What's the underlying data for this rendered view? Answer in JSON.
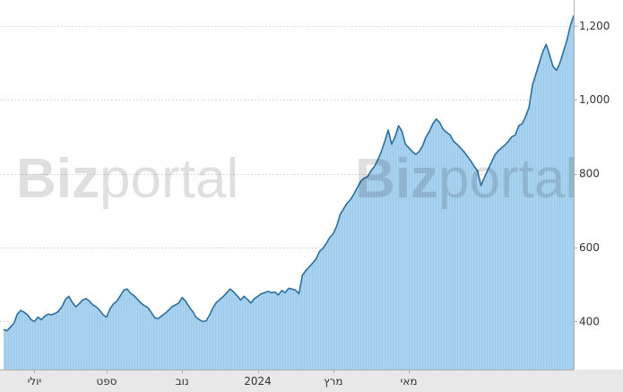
{
  "watermark": {
    "bold": "Biz",
    "light": "portal"
  },
  "chart_data": {
    "type": "area",
    "title": "",
    "xlabel": "",
    "ylabel": "",
    "ylim": [
      270,
      1270
    ],
    "yticks": [
      400,
      600,
      800,
      1000,
      1200
    ],
    "ytick_labels": [
      "400",
      "600",
      "800",
      "1,000",
      "1,200"
    ],
    "y_axis_position": "right",
    "grid": true,
    "legend": "none",
    "colors": {
      "line": "#2c6e9e",
      "fill": "#a9d2ee",
      "fill_stripe": "#8fc2e6",
      "axis_band": "#e8e8e8"
    },
    "x_tick_labels": [
      {
        "label": "יולי",
        "index": 9
      },
      {
        "label": "ספט",
        "index": 30
      },
      {
        "label": "נוב",
        "index": 52
      },
      {
        "label": "2024",
        "index": 74
      },
      {
        "label": "מרץ",
        "index": 96
      },
      {
        "label": "מאי",
        "index": 118
      }
    ],
    "series": [
      {
        "values": [
          378,
          375,
          385,
          395,
          420,
          430,
          425,
          418,
          405,
          400,
          412,
          405,
          415,
          420,
          418,
          422,
          428,
          440,
          460,
          468,
          452,
          440,
          448,
          458,
          462,
          455,
          445,
          440,
          430,
          418,
          412,
          435,
          448,
          455,
          470,
          485,
          488,
          476,
          470,
          460,
          450,
          443,
          438,
          425,
          410,
          408,
          415,
          422,
          430,
          440,
          445,
          450,
          465,
          455,
          440,
          428,
          412,
          405,
          400,
          402,
          418,
          438,
          452,
          460,
          468,
          478,
          488,
          480,
          470,
          458,
          468,
          460,
          450,
          462,
          468,
          475,
          478,
          482,
          478,
          480,
          472,
          484,
          478,
          490,
          488,
          485,
          475,
          525,
          538,
          548,
          558,
          570,
          590,
          598,
          612,
          628,
          638,
          658,
          690,
          705,
          720,
          730,
          745,
          762,
          780,
          788,
          792,
          808,
          820,
          838,
          860,
          888,
          918,
          880,
          900,
          930,
          915,
          880,
          870,
          860,
          852,
          860,
          875,
          900,
          915,
          935,
          948,
          938,
          920,
          912,
          905,
          888,
          880,
          870,
          860,
          848,
          835,
          820,
          808,
          768,
          790,
          810,
          830,
          850,
          862,
          870,
          878,
          888,
          900,
          905,
          930,
          935,
          955,
          980,
          1040,
          1070,
          1100,
          1130,
          1150,
          1120,
          1090,
          1080,
          1100,
          1130,
          1160,
          1200,
          1228
        ]
      }
    ]
  }
}
